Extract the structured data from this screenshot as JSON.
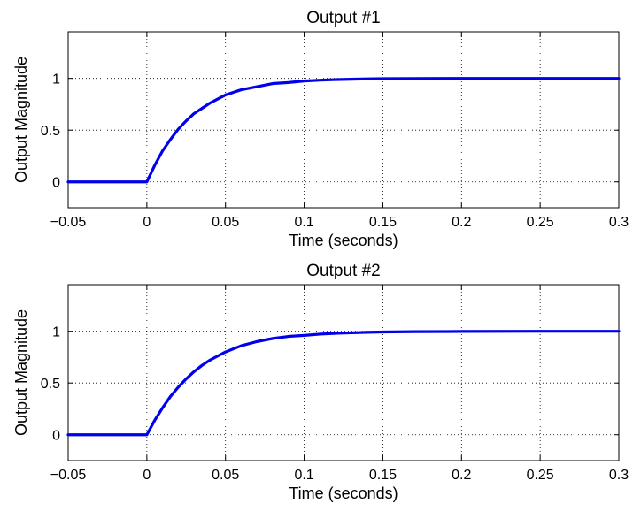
{
  "chart_data": [
    {
      "type": "line",
      "title": "Output #1",
      "xlabel": "Time (seconds)",
      "ylabel": "Output Magnitude",
      "xlim": [
        -0.05,
        0.3
      ],
      "ylim": [
        -0.25,
        1.45
      ],
      "xticks": [
        -0.05,
        0,
        0.05,
        0.1,
        0.15,
        0.2,
        0.25,
        0.3
      ],
      "xtick_labels": [
        "−0.05",
        "0",
        "0.05",
        "0.1",
        "0.15",
        "0.2",
        "0.25",
        "0.3"
      ],
      "yticks": [
        0,
        0.5,
        1
      ],
      "ytick_labels": [
        "0",
        "0.5",
        "1"
      ],
      "grid": true,
      "line_color": "#0000ee",
      "series": [
        {
          "x": [
            -0.05,
            0,
            0.005,
            0.01,
            0.015,
            0.02,
            0.025,
            0.03,
            0.035,
            0.04,
            0.045,
            0.05,
            0.06,
            0.07,
            0.08,
            0.09,
            0.1,
            0.11,
            0.12,
            0.13,
            0.14,
            0.15,
            0.17,
            0.2,
            0.25,
            0.3
          ],
          "y": [
            0,
            0,
            0.16,
            0.3,
            0.41,
            0.51,
            0.59,
            0.66,
            0.71,
            0.76,
            0.8,
            0.84,
            0.89,
            0.92,
            0.95,
            0.96,
            0.975,
            0.983,
            0.988,
            0.992,
            0.995,
            0.997,
            0.999,
            1,
            1,
            1
          ]
        }
      ]
    },
    {
      "type": "line",
      "title": "Output #2",
      "xlabel": "Time (seconds)",
      "ylabel": "Output Magnitude",
      "xlim": [
        -0.05,
        0.3
      ],
      "ylim": [
        -0.25,
        1.45
      ],
      "xticks": [
        -0.05,
        0,
        0.05,
        0.1,
        0.15,
        0.2,
        0.25,
        0.3
      ],
      "xtick_labels": [
        "−0.05",
        "0",
        "0.05",
        "0.1",
        "0.15",
        "0.2",
        "0.25",
        "0.3"
      ],
      "yticks": [
        0,
        0.5,
        1
      ],
      "ytick_labels": [
        "0",
        "0.5",
        "1"
      ],
      "grid": true,
      "line_color": "#0000ee",
      "series": [
        {
          "x": [
            -0.05,
            0,
            0.005,
            0.01,
            0.015,
            0.02,
            0.025,
            0.03,
            0.035,
            0.04,
            0.045,
            0.05,
            0.06,
            0.07,
            0.08,
            0.09,
            0.1,
            0.11,
            0.12,
            0.13,
            0.14,
            0.15,
            0.17,
            0.2,
            0.25,
            0.3
          ],
          "y": [
            0,
            0,
            0.14,
            0.26,
            0.37,
            0.46,
            0.54,
            0.61,
            0.67,
            0.72,
            0.76,
            0.8,
            0.86,
            0.9,
            0.93,
            0.95,
            0.96,
            0.972,
            0.98,
            0.985,
            0.99,
            0.993,
            0.996,
            0.998,
            1,
            1
          ]
        }
      ]
    }
  ]
}
